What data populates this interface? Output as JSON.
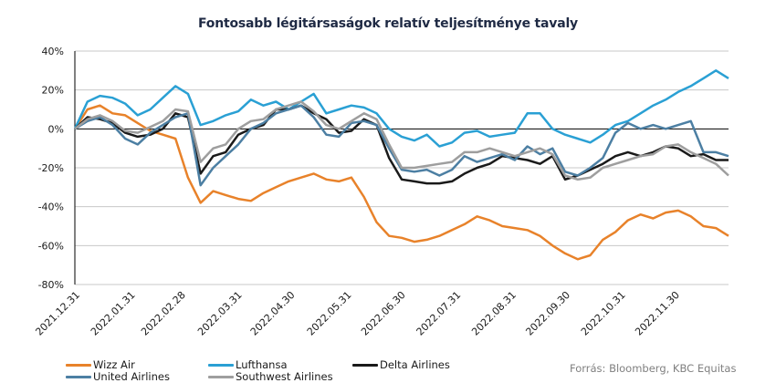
{
  "chart_data": {
    "type": "line",
    "title": "Fontosabb légitársaságok relatív teljesítménye  tavaly",
    "xlabel": "",
    "ylabel": "",
    "ylim": [
      -80,
      40
    ],
    "y_ticks": [
      "40%",
      "20%",
      "0%",
      "-20%",
      "-40%",
      "-60%",
      "-80%"
    ],
    "y_tick_values": [
      40,
      20,
      0,
      -20,
      -40,
      -60,
      -80
    ],
    "x_tick_labels": [
      "2021.12.31",
      "2022.01.31",
      "2022.02.28",
      "2022.03.31",
      "2022.04.30",
      "2022.05.31",
      "2022.06.30",
      "2022.07.31",
      "2022.08.31",
      "2022.09.30",
      "2022.10.31",
      "2022.11.30"
    ],
    "x_tick_positions_weeks": [
      0,
      4.4,
      8.4,
      12.9,
      17.1,
      21.6,
      25.9,
      30.3,
      34.7,
      39.0,
      43.4,
      47.7
    ],
    "x_range_weeks": [
      0,
      52
    ],
    "grid": true,
    "legend_position": "bottom",
    "series": [
      {
        "name": "Wizz Air",
        "color": "#e8822a",
        "values": [
          0,
          10,
          12,
          8,
          7,
          3,
          -1,
          -3,
          -5,
          -25,
          -38,
          -32,
          -34,
          -36,
          -37,
          -33,
          -30,
          -27,
          -25,
          -23,
          -26,
          -27,
          -25,
          -35,
          -48,
          -55,
          -56,
          -58,
          -57,
          -55,
          -52,
          -49,
          -45,
          -47,
          -50,
          -51,
          -52,
          -55,
          -60,
          -64,
          -67,
          -65,
          -57,
          -53,
          -47,
          -44,
          -46,
          -43,
          -42,
          -45,
          -50,
          -51,
          -55
        ]
      },
      {
        "name": "Lufthansa",
        "color": "#2aa0d4",
        "values": [
          0,
          14,
          17,
          16,
          13,
          7,
          10,
          16,
          22,
          18,
          2,
          4,
          7,
          9,
          15,
          12,
          14,
          10,
          14,
          18,
          8,
          10,
          12,
          11,
          8,
          0,
          -4,
          -6,
          -3,
          -9,
          -7,
          -2,
          -1,
          -4,
          -3,
          -2,
          8,
          8,
          0,
          -3,
          -5,
          -7,
          -3,
          2,
          4,
          8,
          12,
          15,
          19,
          22,
          26,
          30,
          26
        ]
      },
      {
        "name": "Delta Airlines",
        "color": "#1a1a1a",
        "values": [
          0,
          6,
          5,
          3,
          -2,
          -4,
          -3,
          0,
          8,
          6,
          -23,
          -14,
          -12,
          -3,
          0,
          2,
          10,
          10,
          12,
          8,
          5,
          -2,
          -1,
          5,
          2,
          -15,
          -26,
          -27,
          -28,
          -28,
          -27,
          -23,
          -20,
          -18,
          -14,
          -15,
          -16,
          -18,
          -14,
          -26,
          -24,
          -21,
          -18,
          -14,
          -12,
          -14,
          -12,
          -9,
          -10,
          -14,
          -13,
          -16,
          -16
        ]
      },
      {
        "name": "United Airlines",
        "color": "#4c7fa3",
        "values": [
          0,
          4,
          6,
          2,
          -5,
          -8,
          -2,
          2,
          6,
          8,
          -29,
          -20,
          -14,
          -8,
          0,
          3,
          8,
          10,
          12,
          6,
          -3,
          -4,
          3,
          4,
          2,
          -10,
          -21,
          -22,
          -21,
          -24,
          -21,
          -14,
          -17,
          -15,
          -13,
          -16,
          -9,
          -13,
          -10,
          -22,
          -24,
          -20,
          -15,
          -2,
          3,
          0,
          2,
          0,
          2,
          4,
          -12,
          -12,
          -14
        ]
      },
      {
        "name": "Southwest Airlines",
        "color": "#9e9e9e",
        "values": [
          0,
          5,
          7,
          4,
          -1,
          -2,
          1,
          4,
          10,
          9,
          -17,
          -10,
          -8,
          0,
          4,
          5,
          10,
          12,
          14,
          9,
          2,
          0,
          4,
          8,
          5,
          -8,
          -20,
          -20,
          -19,
          -18,
          -17,
          -12,
          -12,
          -10,
          -12,
          -14,
          -12,
          -10,
          -13,
          -24,
          -26,
          -25,
          -20,
          -18,
          -16,
          -14,
          -13,
          -9,
          -8,
          -12,
          -15,
          -18,
          -24
        ]
      }
    ]
  },
  "legend": {
    "items": [
      {
        "label": "Wizz Air",
        "color": "#e8822a"
      },
      {
        "label": "Lufthansa",
        "color": "#2aa0d4"
      },
      {
        "label": "Delta Airlines",
        "color": "#1a1a1a"
      },
      {
        "label": "United Airlines",
        "color": "#4c7fa3"
      },
      {
        "label": "Southwest Airlines",
        "color": "#9e9e9e"
      }
    ]
  },
  "source": "Forrás: Bloomberg,  KBC Equitas"
}
